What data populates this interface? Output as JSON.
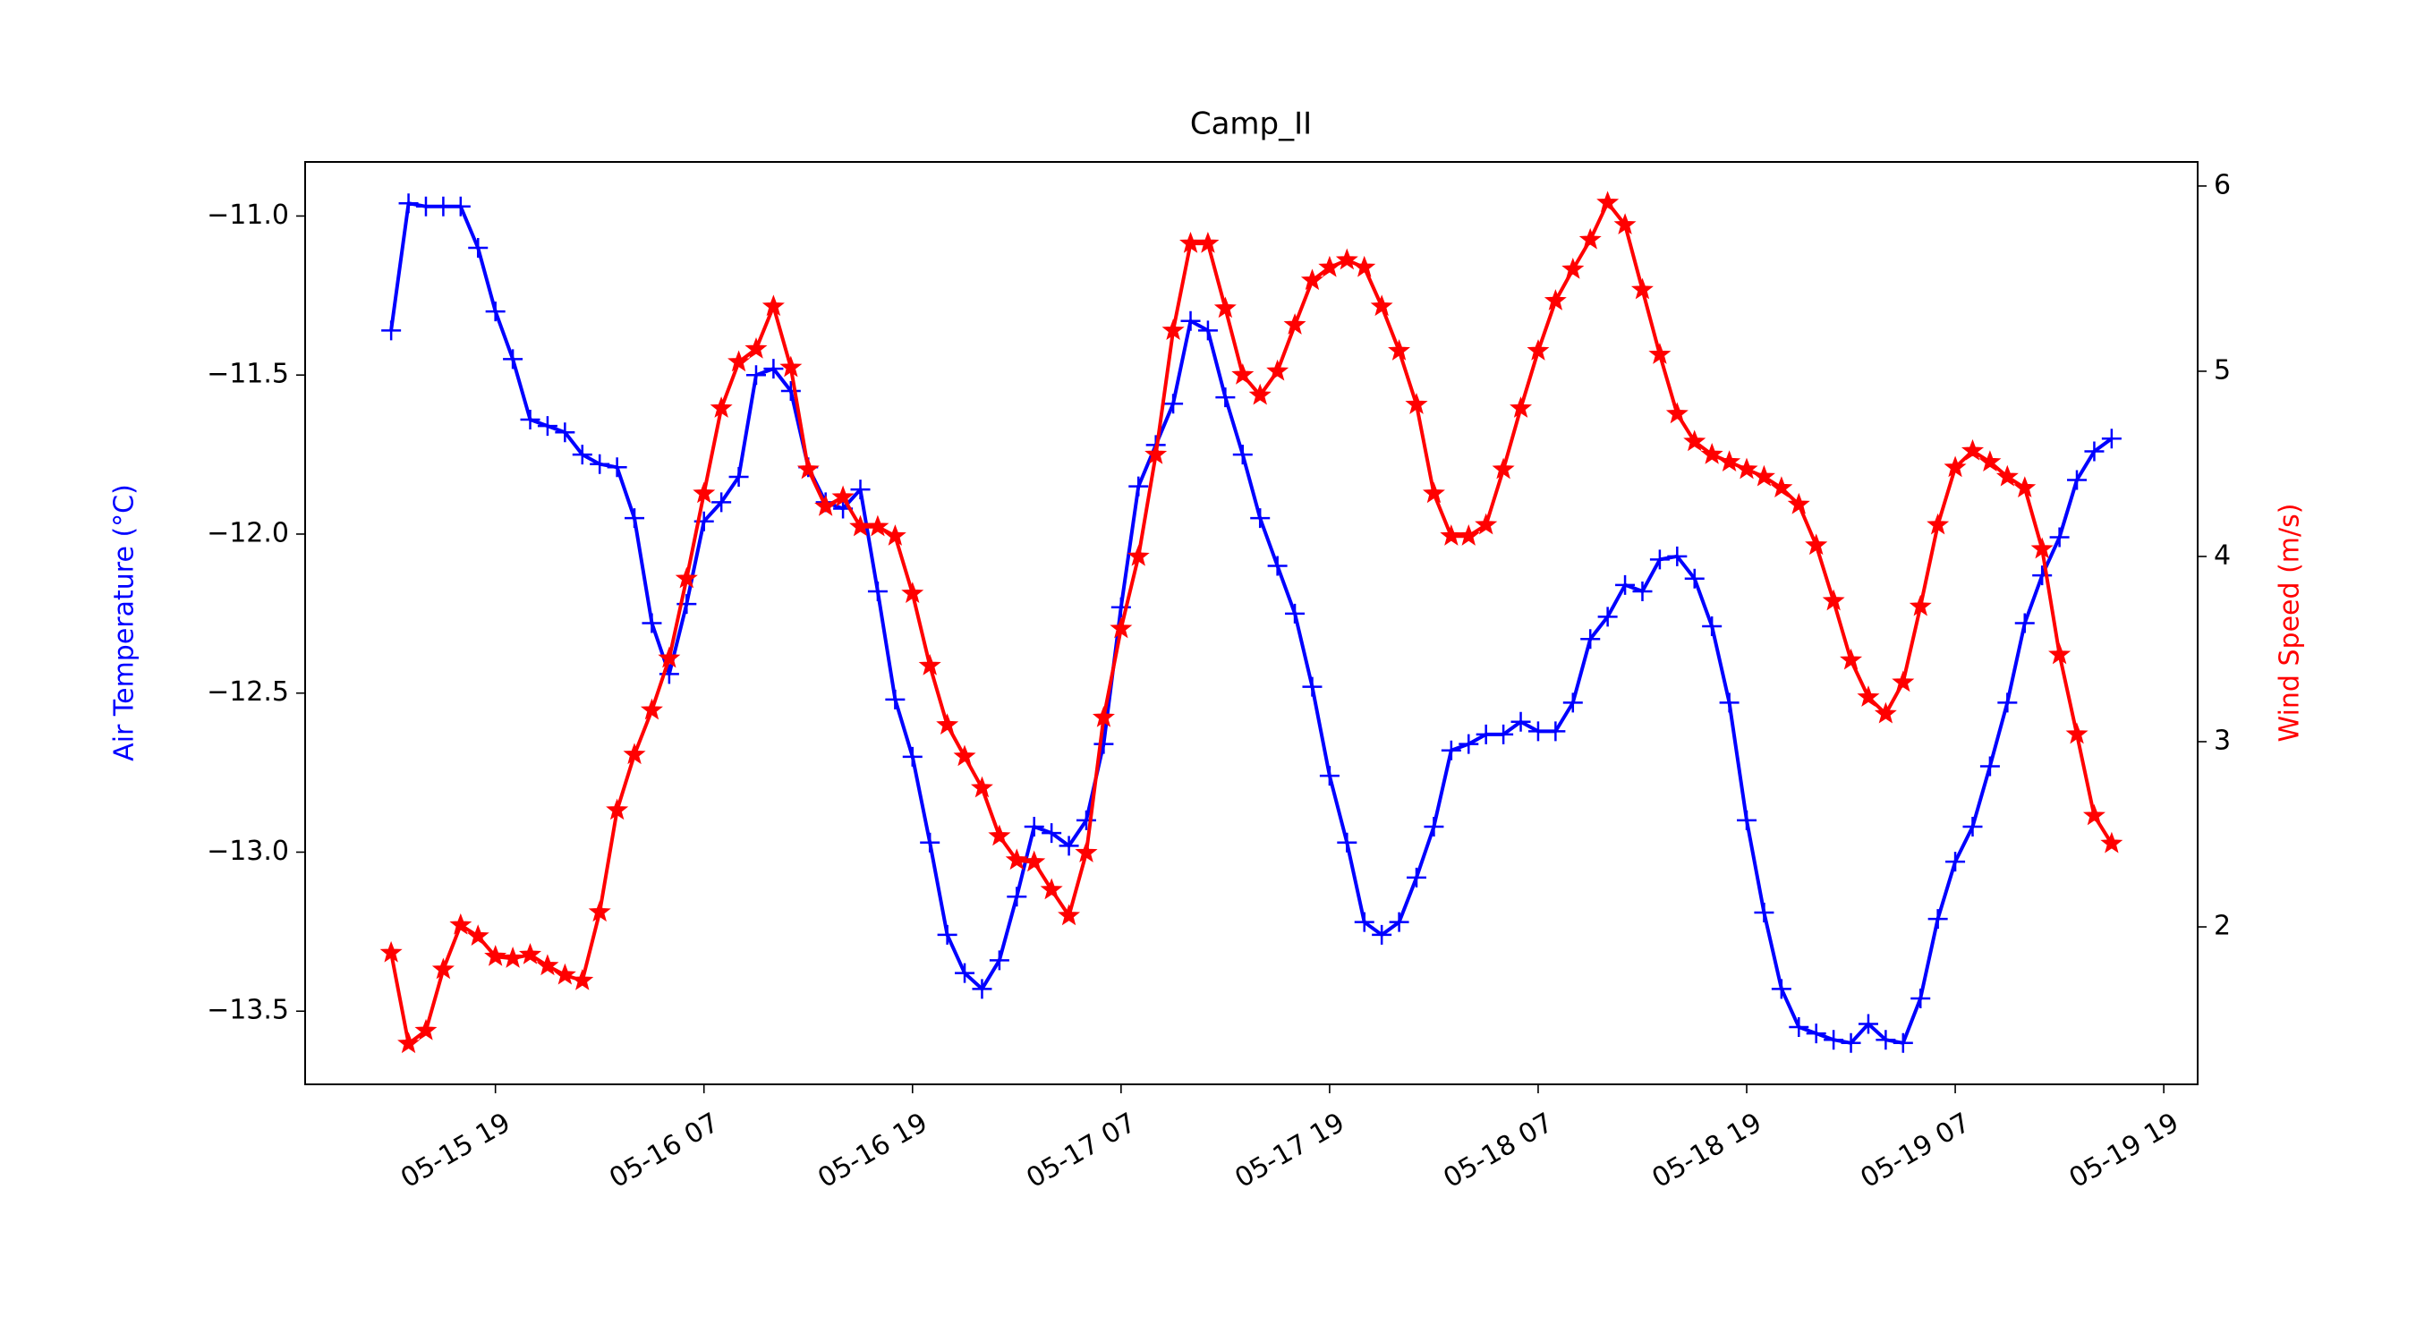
{
  "chart_data": {
    "type": "line",
    "title": "Camp_II",
    "ylabel": "Air Temperature (°C)",
    "y2label": "Wind Speed (m/s)",
    "x": [
      "05-15 13",
      "05-15 14",
      "05-15 15",
      "05-15 16",
      "05-15 17",
      "05-15 18",
      "05-15 19",
      "05-15 20",
      "05-15 21",
      "05-15 22",
      "05-15 23",
      "05-16 00",
      "05-16 01",
      "05-16 02",
      "05-16 03",
      "05-16 04",
      "05-16 05",
      "05-16 06",
      "05-16 07",
      "05-16 08",
      "05-16 09",
      "05-16 10",
      "05-16 11",
      "05-16 12",
      "05-16 13",
      "05-16 14",
      "05-16 15",
      "05-16 16",
      "05-16 17",
      "05-16 18",
      "05-16 19",
      "05-16 20",
      "05-16 21",
      "05-16 22",
      "05-16 23",
      "05-17 00",
      "05-17 01",
      "05-17 02",
      "05-17 03",
      "05-17 04",
      "05-17 05",
      "05-17 06",
      "05-17 07",
      "05-17 08",
      "05-17 09",
      "05-17 10",
      "05-17 11",
      "05-17 12",
      "05-17 13",
      "05-17 14",
      "05-17 15",
      "05-17 16",
      "05-17 17",
      "05-17 18",
      "05-17 19",
      "05-17 20",
      "05-17 21",
      "05-17 22",
      "05-17 23",
      "05-18 00",
      "05-18 01",
      "05-18 02",
      "05-18 03",
      "05-18 04",
      "05-18 05",
      "05-18 06",
      "05-18 07",
      "05-18 08",
      "05-18 09",
      "05-18 10",
      "05-18 11",
      "05-18 12",
      "05-18 13",
      "05-18 14",
      "05-18 15",
      "05-18 16",
      "05-18 17",
      "05-18 18",
      "05-18 19",
      "05-18 20",
      "05-18 21",
      "05-18 22",
      "05-18 23",
      "05-19 00",
      "05-19 01",
      "05-19 02",
      "05-19 03",
      "05-19 04",
      "05-19 05",
      "05-19 06",
      "05-19 07",
      "05-19 08",
      "05-19 09",
      "05-19 10",
      "05-19 11",
      "05-19 12",
      "05-19 13",
      "05-19 14",
      "05-19 15",
      "05-19 16"
    ],
    "xlim": [
      "05-15 08:03",
      "05-19 20:57"
    ],
    "xticks": [
      "05-15 19",
      "05-16 07",
      "05-16 19",
      "05-17 07",
      "05-17 19",
      "05-18 07",
      "05-18 19",
      "05-19 07",
      "05-19 19"
    ],
    "ylim": [
      -13.73,
      -10.83
    ],
    "yticks": [
      {
        "value": -13.5,
        "label": "−13.5"
      },
      {
        "value": -13,
        "label": "−13.0"
      },
      {
        "value": -12.5,
        "label": "−12.5"
      },
      {
        "value": -12,
        "label": "−12.0"
      },
      {
        "value": -11.5,
        "label": "−11.5"
      },
      {
        "value": -11,
        "label": "−11.0"
      }
    ],
    "y2lim": [
      1.15,
      6.13
    ],
    "y2ticks": [
      2,
      3,
      4,
      5,
      6
    ],
    "series": [
      {
        "color": "#0000ff",
        "marker": "+",
        "axis": "y",
        "values": [
          -11.36,
          -10.96,
          -10.97,
          -10.97,
          -10.97,
          -11.1,
          -11.3,
          -11.45,
          -11.64,
          -11.66,
          -11.68,
          -11.75,
          -11.78,
          -11.79,
          -11.95,
          -12.28,
          -12.44,
          -12.22,
          -11.96,
          -11.9,
          -11.82,
          -11.5,
          -11.48,
          -11.55,
          -11.79,
          -11.9,
          -11.92,
          -11.86,
          -12.18,
          -12.52,
          -12.7,
          -12.97,
          -13.26,
          -13.38,
          -13.43,
          -13.34,
          -13.14,
          -12.92,
          -12.94,
          -12.98,
          -12.9,
          -12.66,
          -12.23,
          -11.85,
          -11.72,
          -11.59,
          -11.33,
          -11.36,
          -11.57,
          -11.75,
          -11.95,
          -12.1,
          -12.25,
          -12.48,
          -12.76,
          -12.97,
          -13.22,
          -13.26,
          -13.22,
          -13.08,
          -12.92,
          -12.68,
          -12.66,
          -12.63,
          -12.63,
          -12.59,
          -12.62,
          -12.62,
          -12.53,
          -12.33,
          -12.26,
          -12.16,
          -12.18,
          -12.08,
          -12.07,
          -12.14,
          -12.29,
          -12.53,
          -12.9,
          -13.19,
          -13.43,
          -13.55,
          -13.57,
          -13.59,
          -13.6,
          -13.54,
          -13.59,
          -13.6,
          -13.46,
          -13.21,
          -13.03,
          -12.92,
          -12.73,
          -12.53,
          -12.28,
          -12.13,
          -12.01,
          -11.83,
          -11.74,
          -11.7
        ]
      },
      {
        "color": "#ff0000",
        "marker": "*",
        "axis": "y2",
        "values": [
          1.86,
          1.37,
          1.44,
          1.77,
          2.01,
          1.95,
          1.84,
          1.83,
          1.85,
          1.79,
          1.74,
          1.71,
          2.08,
          2.63,
          2.93,
          3.17,
          3.45,
          3.88,
          4.34,
          4.8,
          5.05,
          5.12,
          5.35,
          5.02,
          4.47,
          4.27,
          4.32,
          4.16,
          4.16,
          4.11,
          3.8,
          3.41,
          3.09,
          2.92,
          2.75,
          2.49,
          2.36,
          2.35,
          2.2,
          2.06,
          2.4,
          3.13,
          3.61,
          4.0,
          4.55,
          5.22,
          5.69,
          5.69,
          5.34,
          4.98,
          4.87,
          5.0,
          5.25,
          5.49,
          5.56,
          5.6,
          5.56,
          5.35,
          5.11,
          4.82,
          4.34,
          4.11,
          4.11,
          4.17,
          4.47,
          4.8,
          5.11,
          5.38,
          5.55,
          5.71,
          5.91,
          5.79,
          5.44,
          5.09,
          4.77,
          4.62,
          4.55,
          4.51,
          4.47,
          4.43,
          4.37,
          4.28,
          4.06,
          3.76,
          3.44,
          3.24,
          3.15,
          3.32,
          3.73,
          4.17,
          4.48,
          4.57,
          4.51,
          4.43,
          4.37,
          4.04,
          3.47,
          3.04,
          2.6,
          2.45
        ]
      }
    ]
  }
}
